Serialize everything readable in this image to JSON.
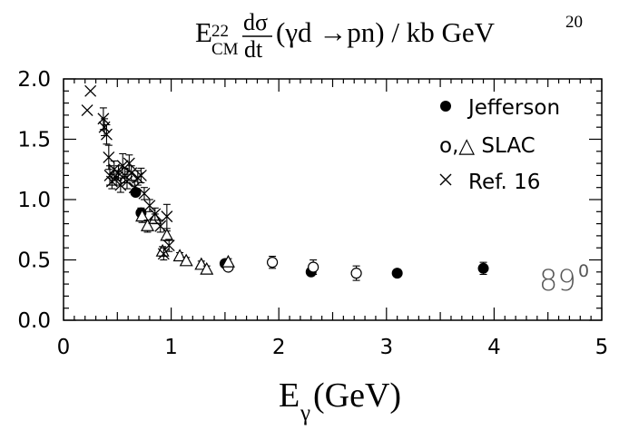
{
  "chart_data": {
    "type": "scatter",
    "title": {
      "E": "E",
      "sub_cm": "CM",
      "sup_22": "22",
      "frac_num": "dσ",
      "frac_den": "dt",
      "rest": "(γd →pn) / kb GeV",
      "sup_20": "20"
    },
    "xlabel": {
      "main": "E",
      "sub": "γ",
      "rest": "(GeV)"
    },
    "xlim": [
      0,
      5
    ],
    "ylim": [
      0,
      2
    ],
    "x_ticks": [
      "0",
      "1",
      "2",
      "3",
      "4",
      "5"
    ],
    "y_ticks": [
      "0.0",
      "0.5",
      "1.0",
      "1.5",
      "2.0"
    ],
    "annotation": {
      "base": "89",
      "sup": "0"
    },
    "legend": {
      "placement": "top-right",
      "entries": [
        {
          "marker": "filled-circle",
          "label": "Jefferson"
        },
        {
          "marker": "open-circle-triangle",
          "label": "o,△ SLAC"
        },
        {
          "marker": "cross",
          "label": "Ref. 16"
        }
      ]
    },
    "series": [
      {
        "name": "Jefferson",
        "marker": "filled-circle",
        "points": [
          {
            "x": 0.67,
            "y": 1.06,
            "err": 0.02
          },
          {
            "x": 0.72,
            "y": 0.89,
            "err": 0.04
          },
          {
            "x": 1.5,
            "y": 0.47,
            "err": 0.03
          },
          {
            "x": 2.3,
            "y": 0.4,
            "err": 0.03
          },
          {
            "x": 3.1,
            "y": 0.39,
            "err": 0.03
          },
          {
            "x": 3.9,
            "y": 0.43,
            "err": 0.05
          }
        ]
      },
      {
        "name": "SLAC",
        "marker": "open-circle",
        "points": [
          {
            "x": 1.53,
            "y": 0.44,
            "err": 0.03
          },
          {
            "x": 1.94,
            "y": 0.48,
            "err": 0.05
          },
          {
            "x": 2.32,
            "y": 0.44,
            "err": 0.06
          },
          {
            "x": 2.72,
            "y": 0.39,
            "err": 0.06
          }
        ]
      },
      {
        "name": "SLAC",
        "marker": "open-triangle",
        "points": [
          {
            "x": 0.73,
            "y": 0.86,
            "err": 0.05
          },
          {
            "x": 0.78,
            "y": 0.78,
            "err": 0.05
          },
          {
            "x": 0.85,
            "y": 0.84,
            "err": 0.04
          },
          {
            "x": 0.92,
            "y": 0.57,
            "err": 0.04
          },
          {
            "x": 0.96,
            "y": 0.7,
            "err": 0.04
          },
          {
            "x": 1.08,
            "y": 0.53,
            "err": 0.03
          },
          {
            "x": 1.14,
            "y": 0.49,
            "err": 0.03
          },
          {
            "x": 1.28,
            "y": 0.46,
            "err": 0.03
          },
          {
            "x": 1.33,
            "y": 0.42,
            "err": 0.03
          },
          {
            "x": 1.53,
            "y": 0.48,
            "err": 0.03
          }
        ]
      },
      {
        "name": "Ref. 16",
        "marker": "cross",
        "points": [
          {
            "x": 0.22,
            "y": 1.74
          },
          {
            "x": 0.25,
            "y": 1.9
          },
          {
            "x": 0.37,
            "y": 1.67,
            "err": 0.09
          },
          {
            "x": 0.38,
            "y": 1.6,
            "err": 0.07
          },
          {
            "x": 0.4,
            "y": 1.54,
            "err": 0.08
          },
          {
            "x": 0.42,
            "y": 1.35,
            "err": 0.1
          },
          {
            "x": 0.43,
            "y": 1.2,
            "err": 0.08
          },
          {
            "x": 0.45,
            "y": 1.15,
            "err": 0.06
          },
          {
            "x": 0.47,
            "y": 1.25,
            "err": 0.07
          },
          {
            "x": 0.49,
            "y": 1.18,
            "err": 0.06
          },
          {
            "x": 0.51,
            "y": 1.22,
            "err": 0.06
          },
          {
            "x": 0.53,
            "y": 1.12,
            "err": 0.06
          },
          {
            "x": 0.55,
            "y": 1.28,
            "err": 0.1
          },
          {
            "x": 0.57,
            "y": 1.2,
            "err": 0.06
          },
          {
            "x": 0.59,
            "y": 1.15,
            "err": 0.06
          },
          {
            "x": 0.61,
            "y": 1.3,
            "err": 0.07
          },
          {
            "x": 0.63,
            "y": 1.22,
            "err": 0.06
          },
          {
            "x": 0.66,
            "y": 1.1,
            "err": 0.05
          },
          {
            "x": 0.69,
            "y": 1.18,
            "err": 0.06
          },
          {
            "x": 0.72,
            "y": 1.2,
            "err": 0.06
          },
          {
            "x": 0.75,
            "y": 1.05,
            "err": 0.05
          },
          {
            "x": 0.8,
            "y": 0.95,
            "err": 0.05
          },
          {
            "x": 0.85,
            "y": 0.88,
            "err": 0.05
          },
          {
            "x": 0.9,
            "y": 0.78,
            "err": 0.05
          },
          {
            "x": 0.93,
            "y": 0.55,
            "err": 0.05
          },
          {
            "x": 0.96,
            "y": 0.86,
            "err": 0.1
          },
          {
            "x": 0.98,
            "y": 0.62,
            "err": 0.05
          }
        ]
      }
    ]
  }
}
